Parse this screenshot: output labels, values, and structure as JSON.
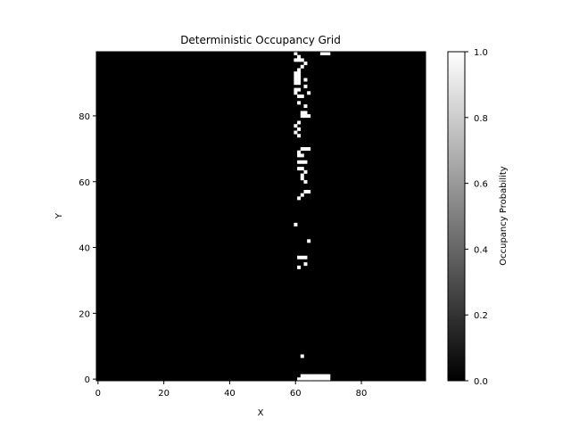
{
  "chart_data": {
    "type": "heatmap",
    "title": "Deterministic Occupancy Grid",
    "xlabel": "X",
    "ylabel": "Y",
    "xlim": [
      -0.5,
      99.5
    ],
    "ylim": [
      -0.5,
      99.5
    ],
    "x_ticks": [
      0,
      20,
      40,
      60,
      80
    ],
    "y_ticks": [
      0,
      20,
      40,
      60,
      80
    ],
    "colormap": [
      "#000000",
      "#ffffff"
    ],
    "colorbar": {
      "label": "Occupancy Probability",
      "range": [
        0,
        1
      ],
      "ticks": [
        "0.0",
        "0.2",
        "0.4",
        "0.6",
        "0.8",
        "1.0"
      ]
    },
    "background_value": 0,
    "occupied_value": 1,
    "occupied_cells": [
      [
        62,
        0
      ],
      [
        63,
        0
      ],
      [
        64,
        0
      ],
      [
        65,
        0
      ],
      [
        66,
        0
      ],
      [
        67,
        0
      ],
      [
        68,
        0
      ],
      [
        69,
        0
      ],
      [
        70,
        0
      ],
      [
        61,
        0
      ],
      [
        62,
        1
      ],
      [
        63,
        1
      ],
      [
        64,
        1
      ],
      [
        65,
        1
      ],
      [
        66,
        1
      ],
      [
        67,
        1
      ],
      [
        68,
        1
      ],
      [
        69,
        1
      ],
      [
        70,
        1
      ],
      [
        62,
        7
      ],
      [
        61,
        34
      ],
      [
        63,
        35
      ],
      [
        61,
        37
      ],
      [
        62,
        37
      ],
      [
        63,
        37
      ],
      [
        64,
        42
      ],
      [
        60,
        47
      ],
      [
        61,
        55
      ],
      [
        62,
        56
      ],
      [
        63,
        57
      ],
      [
        64,
        57
      ],
      [
        63,
        60
      ],
      [
        62,
        61
      ],
      [
        62,
        62
      ],
      [
        63,
        63
      ],
      [
        61,
        64
      ],
      [
        62,
        64
      ],
      [
        61,
        66
      ],
      [
        62,
        66
      ],
      [
        63,
        66
      ],
      [
        61,
        68
      ],
      [
        62,
        68
      ],
      [
        61,
        69
      ],
      [
        62,
        70
      ],
      [
        63,
        70
      ],
      [
        64,
        70
      ],
      [
        61,
        74
      ],
      [
        60,
        75
      ],
      [
        61,
        76
      ],
      [
        60,
        77
      ],
      [
        61,
        78
      ],
      [
        62,
        80
      ],
      [
        63,
        80
      ],
      [
        62,
        81
      ],
      [
        63,
        81
      ],
      [
        64,
        80
      ],
      [
        63,
        83
      ],
      [
        61,
        84
      ],
      [
        61,
        86
      ],
      [
        62,
        86
      ],
      [
        64,
        87
      ],
      [
        60,
        87
      ],
      [
        60,
        88
      ],
      [
        61,
        88
      ],
      [
        63,
        89
      ],
      [
        60,
        90
      ],
      [
        61,
        90
      ],
      [
        60,
        91
      ],
      [
        61,
        91
      ],
      [
        60,
        92
      ],
      [
        61,
        92
      ],
      [
        63,
        91
      ],
      [
        60,
        93
      ],
      [
        61,
        93
      ],
      [
        61,
        94
      ],
      [
        62,
        95
      ],
      [
        63,
        96
      ],
      [
        61,
        97
      ],
      [
        62,
        97
      ],
      [
        60,
        97
      ],
      [
        61,
        98
      ],
      [
        60,
        99
      ],
      [
        68,
        99
      ],
      [
        69,
        99
      ],
      [
        70,
        99
      ]
    ]
  }
}
